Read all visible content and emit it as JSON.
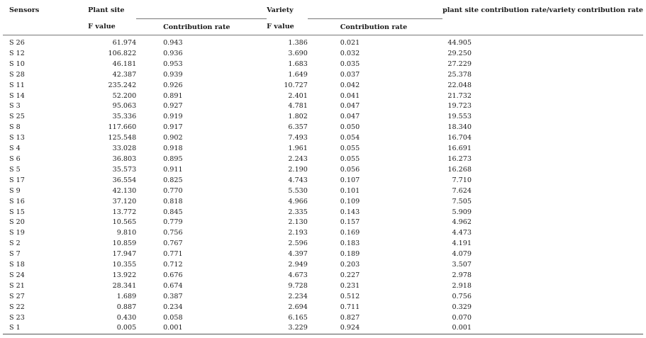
{
  "header": {
    "sensors": "Sensors",
    "plant_site": "Plant site",
    "variety": "Variety",
    "ratio": "plant site contribution rate/variety contribution rate",
    "f_value": "F value",
    "contribution_rate": "Contribution rate"
  },
  "rows": [
    {
      "sensor": "S 26",
      "pf": "61.974",
      "pc": "0.943",
      "vf": "1.386",
      "vc": "0.021",
      "ratio": "44.905"
    },
    {
      "sensor": "S 12",
      "pf": "106.822",
      "pc": "0.936",
      "vf": "3.690",
      "vc": "0.032",
      "ratio": "29.250"
    },
    {
      "sensor": "S 10",
      "pf": "46.181",
      "pc": "0.953",
      "vf": "1.683",
      "vc": "0.035",
      "ratio": "27.229"
    },
    {
      "sensor": "S 28",
      "pf": "42.387",
      "pc": "0.939",
      "vf": "1.649",
      "vc": "0.037",
      "ratio": "25.378"
    },
    {
      "sensor": "S 11",
      "pf": "235.242",
      "pc": "0.926",
      "vf": "10.727",
      "vc": "0.042",
      "ratio": "22.048"
    },
    {
      "sensor": "S 14",
      "pf": "52.200",
      "pc": "0.891",
      "vf": "2.401",
      "vc": "0.041",
      "ratio": "21.732"
    },
    {
      "sensor": "S 3",
      "pf": "95.063",
      "pc": "0.927",
      "vf": "4.781",
      "vc": "0.047",
      "ratio": "19.723"
    },
    {
      "sensor": "S 25",
      "pf": "35.336",
      "pc": "0.919",
      "vf": "1.802",
      "vc": "0.047",
      "ratio": "19.553"
    },
    {
      "sensor": "S 8",
      "pf": "117.660",
      "pc": "0.917",
      "vf": "6.357",
      "vc": "0.050",
      "ratio": "18.340"
    },
    {
      "sensor": "S 13",
      "pf": "125.548",
      "pc": "0.902",
      "vf": "7.493",
      "vc": "0.054",
      "ratio": "16.704"
    },
    {
      "sensor": "S 4",
      "pf": "33.028",
      "pc": "0.918",
      "vf": "1.961",
      "vc": "0.055",
      "ratio": "16.691"
    },
    {
      "sensor": "S 6",
      "pf": "36.803",
      "pc": "0.895",
      "vf": "2.243",
      "vc": "0.055",
      "ratio": "16.273"
    },
    {
      "sensor": "S 5",
      "pf": "35.573",
      "pc": "0.911",
      "vf": "2.190",
      "vc": "0.056",
      "ratio": "16.268"
    },
    {
      "sensor": "S 17",
      "pf": "36.554",
      "pc": "0.825",
      "vf": "4.743",
      "vc": "0.107",
      "ratio": "7.710"
    },
    {
      "sensor": "S 9",
      "pf": "42.130",
      "pc": "0.770",
      "vf": "5.530",
      "vc": "0.101",
      "ratio": "7.624"
    },
    {
      "sensor": "S 16",
      "pf": "37.120",
      "pc": "0.818",
      "vf": "4.966",
      "vc": "0.109",
      "ratio": "7.505"
    },
    {
      "sensor": "S 15",
      "pf": "13.772",
      "pc": "0.845",
      "vf": "2.335",
      "vc": "0.143",
      "ratio": "5.909"
    },
    {
      "sensor": "S 20",
      "pf": "10.565",
      "pc": "0.779",
      "vf": "2.130",
      "vc": "0.157",
      "ratio": "4.962"
    },
    {
      "sensor": "S 19",
      "pf": "9.810",
      "pc": "0.756",
      "vf": "2.193",
      "vc": "0.169",
      "ratio": "4.473"
    },
    {
      "sensor": "S 2",
      "pf": "10.859",
      "pc": "0.767",
      "vf": "2.596",
      "vc": "0.183",
      "ratio": "4.191"
    },
    {
      "sensor": "S 7",
      "pf": "17.947",
      "pc": "0.771",
      "vf": "4.397",
      "vc": "0.189",
      "ratio": "4.079"
    },
    {
      "sensor": "S 18",
      "pf": "10.355",
      "pc": "0.712",
      "vf": "2.949",
      "vc": "0.203",
      "ratio": "3.507"
    },
    {
      "sensor": "S 24",
      "pf": "13.922",
      "pc": "0.676",
      "vf": "4.673",
      "vc": "0.227",
      "ratio": "2.978"
    },
    {
      "sensor": "S 21",
      "pf": "28.341",
      "pc": "0.674",
      "vf": "9.728",
      "vc": "0.231",
      "ratio": "2.918"
    },
    {
      "sensor": "S 27",
      "pf": "1.689",
      "pc": "0.387",
      "vf": "2.234",
      "vc": "0.512",
      "ratio": "0.756"
    },
    {
      "sensor": "S 22",
      "pf": "0.887",
      "pc": "0.234",
      "vf": "2.694",
      "vc": "0.711",
      "ratio": "0.329"
    },
    {
      "sensor": "S 23",
      "pf": "0.430",
      "pc": "0.058",
      "vf": "6.165",
      "vc": "0.827",
      "ratio": "0.070"
    },
    {
      "sensor": "S 1",
      "pf": "0.005",
      "pc": "0.001",
      "vf": "3.229",
      "vc": "0.924",
      "ratio": "0.001"
    }
  ]
}
